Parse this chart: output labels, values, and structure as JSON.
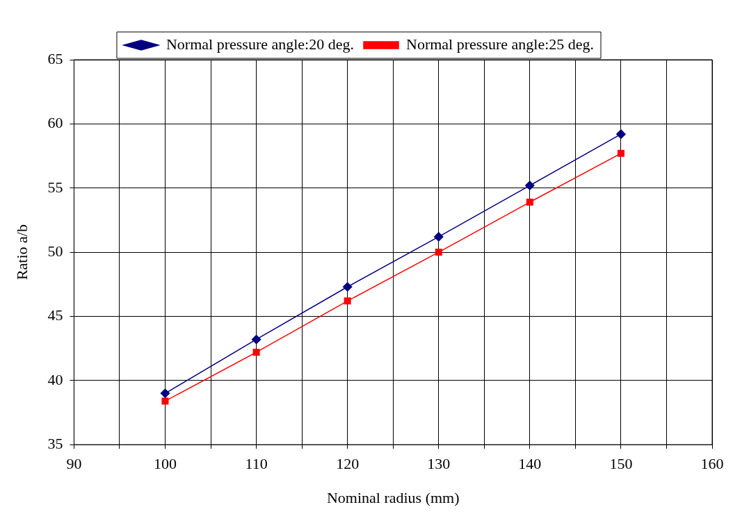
{
  "chart_data": {
    "type": "line",
    "xlabel": "Nominal radius (mm)",
    "ylabel": "Ratio a/b",
    "x": [
      100,
      110,
      120,
      130,
      140,
      150
    ],
    "series": [
      {
        "name": "Normal pressure angle:20 deg.",
        "color": "#000080",
        "marker": "diamond",
        "values": [
          39.0,
          43.2,
          47.3,
          51.2,
          55.2,
          59.2
        ]
      },
      {
        "name": "Normal pressure angle:25 deg.",
        "color": "#ff0000",
        "marker": "square",
        "values": [
          38.4,
          42.2,
          46.2,
          50.0,
          53.9,
          57.7
        ]
      }
    ],
    "xlim": [
      90,
      160
    ],
    "xticks": [
      90,
      {
        "value": 95,
        "label": null
      },
      100,
      {
        "value": 105,
        "label": null
      },
      110,
      {
        "value": 115,
        "label": null
      },
      120,
      {
        "value": 125,
        "label": null
      },
      130,
      {
        "value": 135,
        "label": null
      },
      140,
      {
        "value": 145,
        "label": null
      },
      150,
      {
        "value": 155,
        "label": null
      },
      160
    ],
    "ylim": [
      35,
      65
    ],
    "yticks": [
      35,
      40,
      45,
      50,
      55,
      60,
      65
    ],
    "grid": true,
    "legend": "top",
    "line_style": "solid"
  }
}
